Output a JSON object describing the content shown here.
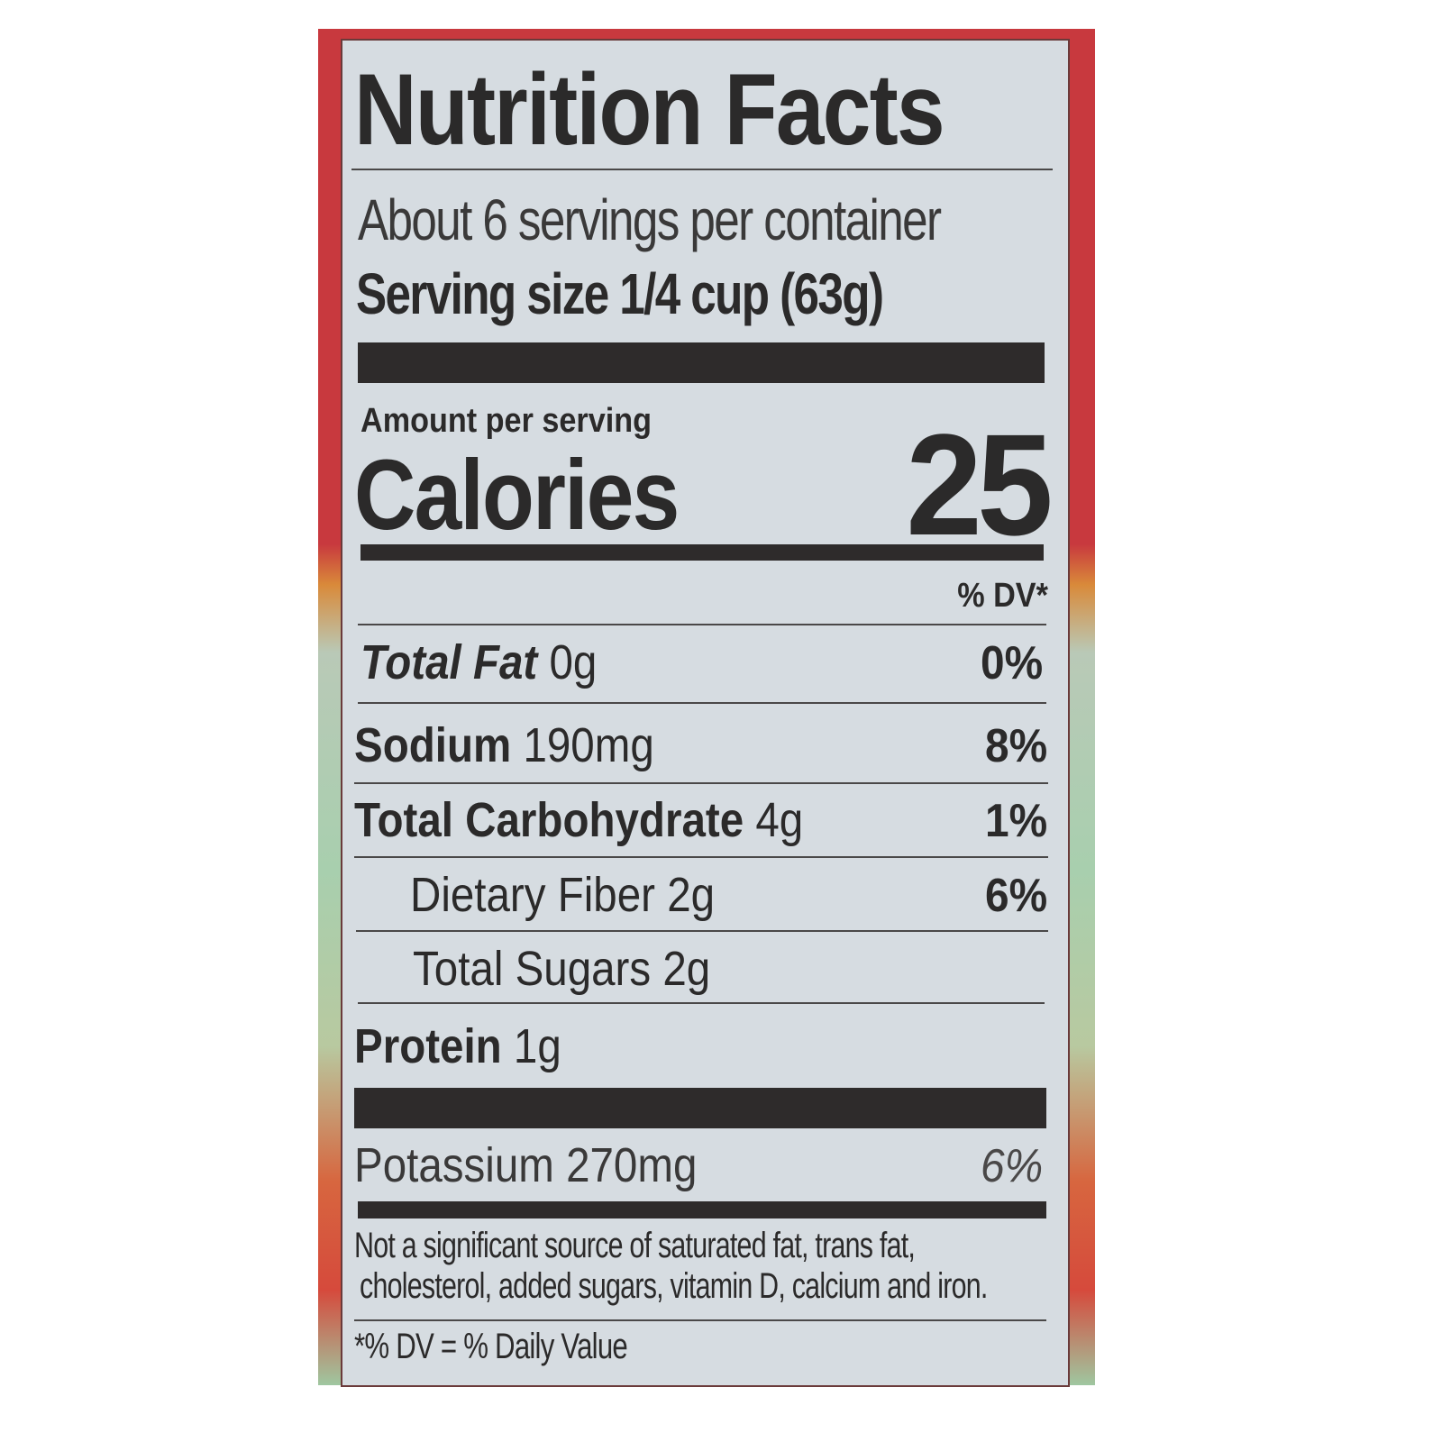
{
  "title": "Nutrition Facts",
  "servings_per_container": "About 6 servings per container",
  "serving_size": {
    "label": "Serving size",
    "value": "1/4 cup (63g)"
  },
  "amount_per_serving": "Amount per serving",
  "calories": {
    "label": "Calories",
    "value": "25"
  },
  "dv_header": "% DV*",
  "nutrients": [
    {
      "name": "Total Fat",
      "amount": "0g",
      "dv": "0%"
    },
    {
      "name": "Sodium",
      "amount": "190mg",
      "dv": "8%"
    },
    {
      "name": "Total Carbohydrate",
      "amount": "4g",
      "dv": "1%"
    },
    {
      "name": "Dietary Fiber",
      "amount": "2g",
      "dv": "6%"
    },
    {
      "name": "Total Sugars",
      "amount": "2g",
      "dv": ""
    },
    {
      "name": "Protein",
      "amount": "1g",
      "dv": ""
    }
  ],
  "potassium": {
    "name": "Potassium",
    "amount": "270mg",
    "dv": "6%"
  },
  "footnote_line1": "Not a significant source of saturated fat, trans fat,",
  "footnote_line2": "cholesterol, added sugars, vitamin D, calcium and iron.",
  "dv_note": "*% DV = % Daily Value",
  "colors": {
    "package_red": "#c8393e",
    "label_background": "#d6dce1",
    "ink": "#2b2a2a"
  }
}
